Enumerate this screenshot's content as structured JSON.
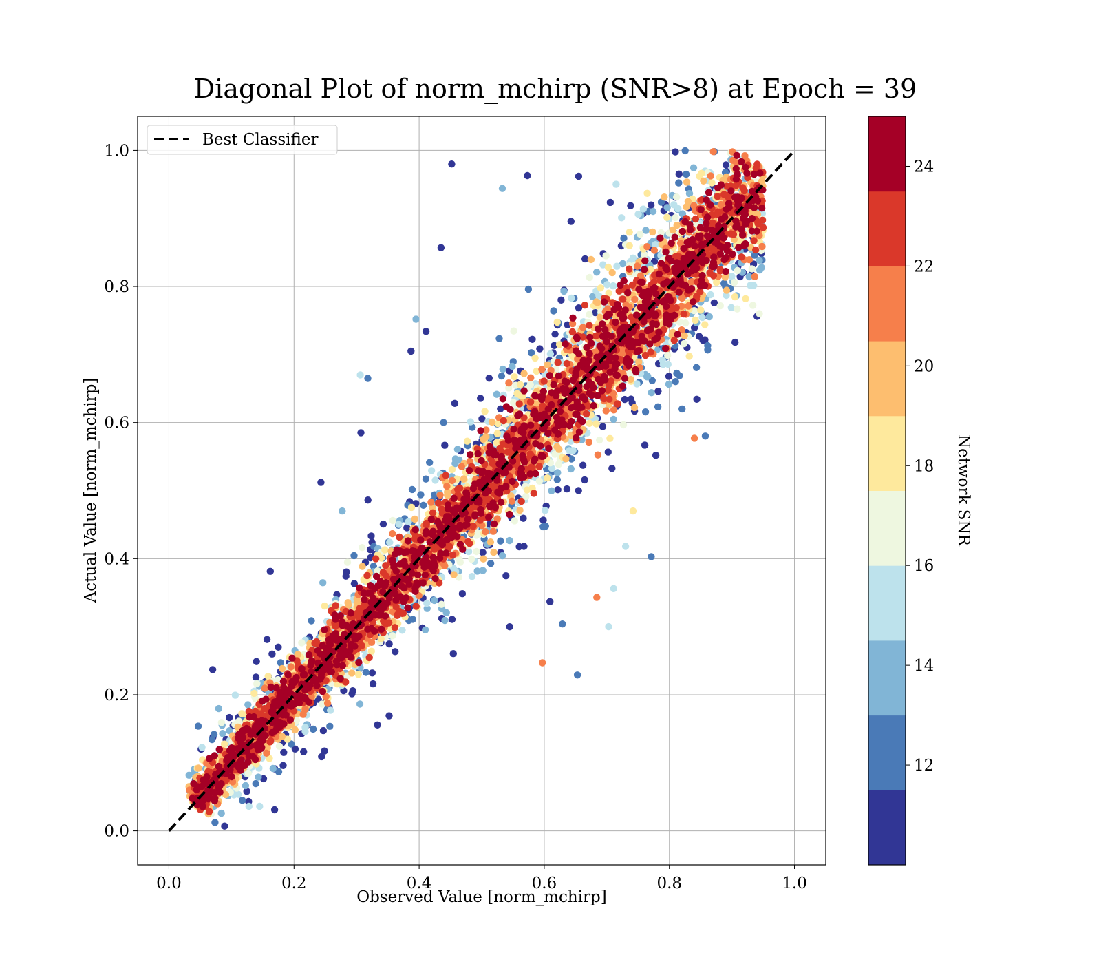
{
  "chart_data": {
    "type": "scatter",
    "title": "Diagonal Plot of norm_mchirp (SNR>8) at Epoch = 39",
    "xlabel": "Observed Value [norm_mchirp]",
    "ylabel": "Actual Value [norm_mchirp]",
    "xlim": [
      -0.05,
      1.05
    ],
    "ylim": [
      -0.05,
      1.05
    ],
    "x_ticks": [
      "0.0",
      "0.2",
      "0.4",
      "0.6",
      "0.8",
      "1.0"
    ],
    "y_ticks": [
      "0.0",
      "0.2",
      "0.4",
      "0.6",
      "0.8",
      "1.0"
    ],
    "grid": true,
    "legend": {
      "placement": "upper-left",
      "entries": [
        {
          "label": "Best Classifier",
          "style": "black-dashed-line"
        }
      ]
    },
    "reference_line": {
      "label": "Best Classifier",
      "x": [
        0,
        1
      ],
      "y": [
        0,
        1
      ],
      "color": "#000000",
      "dash": true
    },
    "colorbar": {
      "label": "Network SNR",
      "range": [
        10,
        25
      ],
      "ticks": [
        "12",
        "14",
        "16",
        "18",
        "20",
        "22",
        "24"
      ],
      "bins": [
        {
          "from": 10.0,
          "to": 11.5,
          "color": "#313695"
        },
        {
          "from": 11.5,
          "to": 13.0,
          "color": "#4a7ab7"
        },
        {
          "from": 13.0,
          "to": 14.5,
          "color": "#81b5d6"
        },
        {
          "from": 14.5,
          "to": 16.0,
          "color": "#bde2ec"
        },
        {
          "from": 16.0,
          "to": 17.5,
          "color": "#eef7e0"
        },
        {
          "from": 17.5,
          "to": 19.0,
          "color": "#fee99d"
        },
        {
          "from": 19.0,
          "to": 20.5,
          "color": "#fdbe6f"
        },
        {
          "from": 20.5,
          "to": 22.0,
          "color": "#f67f4b"
        },
        {
          "from": 22.0,
          "to": 23.5,
          "color": "#da382a"
        },
        {
          "from": 23.5,
          "to": 25.0,
          "color": "#a50026"
        }
      ]
    },
    "outlier_points": [
      {
        "x": 0.452,
        "y": 0.98,
        "snr": 10.5
      },
      {
        "x": 0.435,
        "y": 0.857,
        "snr": 10.5
      },
      {
        "x": 0.243,
        "y": 0.512,
        "snr": 10.5
      },
      {
        "x": 0.307,
        "y": 0.585,
        "snr": 10.5
      },
      {
        "x": 0.318,
        "y": 0.665,
        "snr": 12.5
      },
      {
        "x": 0.306,
        "y": 0.67,
        "snr": 14.5
      },
      {
        "x": 0.07,
        "y": 0.237,
        "snr": 10.5
      },
      {
        "x": 0.169,
        "y": 0.031,
        "snr": 10.5
      },
      {
        "x": 0.244,
        "y": 0.109,
        "snr": 10.5
      },
      {
        "x": 0.352,
        "y": 0.169,
        "snr": 10.5
      },
      {
        "x": 0.653,
        "y": 0.229,
        "snr": 11.5
      },
      {
        "x": 0.597,
        "y": 0.247,
        "snr": 20.5
      },
      {
        "x": 0.703,
        "y": 0.3,
        "snr": 14.5
      },
      {
        "x": 0.629,
        "y": 0.304,
        "snr": 12.5
      },
      {
        "x": 0.684,
        "y": 0.343,
        "snr": 21.0
      },
      {
        "x": 0.711,
        "y": 0.356,
        "snr": 14.5
      },
      {
        "x": 0.771,
        "y": 0.403,
        "snr": 12.5
      },
      {
        "x": 0.84,
        "y": 0.577,
        "snr": 21.5
      },
      {
        "x": 0.905,
        "y": 0.718,
        "snr": 10.5
      },
      {
        "x": 0.922,
        "y": 0.782,
        "snr": 18.0
      },
      {
        "x": 0.742,
        "y": 0.47,
        "snr": 18.5
      },
      {
        "x": 0.73,
        "y": 0.418,
        "snr": 14.5
      },
      {
        "x": 0.533,
        "y": 0.944,
        "snr": 14.0
      },
      {
        "x": 0.573,
        "y": 0.963,
        "snr": 10.5
      },
      {
        "x": 0.655,
        "y": 0.962,
        "snr": 10.5
      },
      {
        "x": 0.128,
        "y": 0.036,
        "snr": 15.0
      },
      {
        "x": 0.145,
        "y": 0.036,
        "snr": 15.0
      },
      {
        "x": 0.089,
        "y": 0.007,
        "snr": 10.5
      },
      {
        "x": 0.395,
        "y": 0.752,
        "snr": 14.0
      },
      {
        "x": 0.411,
        "y": 0.734,
        "snr": 10.5
      },
      {
        "x": 0.387,
        "y": 0.705,
        "snr": 10.5
      },
      {
        "x": 0.277,
        "y": 0.47,
        "snr": 14.0
      }
    ]
  }
}
